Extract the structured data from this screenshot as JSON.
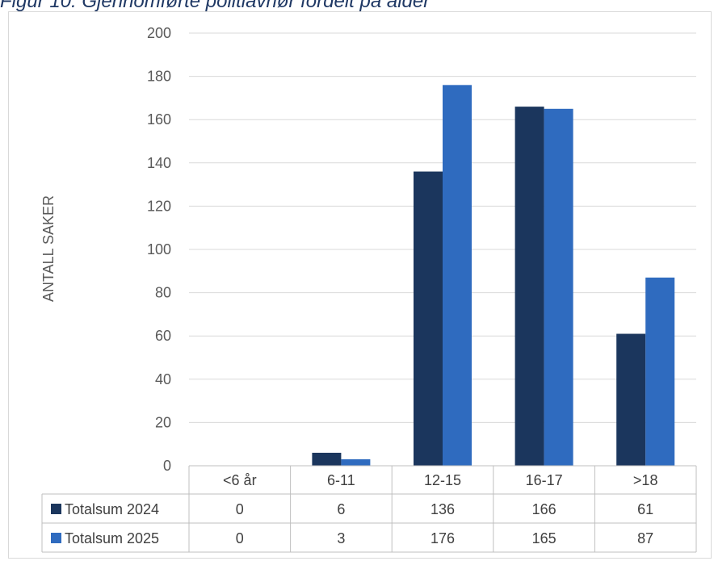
{
  "caption": "Figur 10: Gjennomførte politiavhør fordelt på alder",
  "chart_data": {
    "type": "bar",
    "title": "",
    "xlabel": "",
    "ylabel": "ANTALL SAKER",
    "ylim": [
      0,
      200
    ],
    "yticks": [
      0,
      20,
      40,
      60,
      80,
      100,
      120,
      140,
      160,
      180,
      200
    ],
    "grid": true,
    "legend_placement": "data-table",
    "categories": [
      "<6 år",
      "6-11",
      "12-15",
      "16-17",
      ">18"
    ],
    "series": [
      {
        "name": "Totalsum 2024",
        "color": "#1b365d",
        "values": [
          0,
          6,
          136,
          166,
          61
        ]
      },
      {
        "name": "Totalsum 2025",
        "color": "#2f6bbf",
        "values": [
          0,
          3,
          176,
          165,
          87
        ]
      }
    ]
  }
}
